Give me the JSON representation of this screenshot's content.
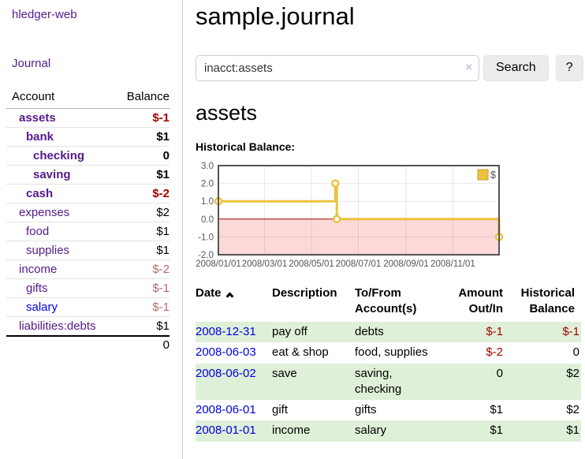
{
  "app": {
    "brand": "hledger-web"
  },
  "sidebar": {
    "nav": [
      {
        "label": "Journal"
      }
    ],
    "accounts": {
      "headers": {
        "account": "Account",
        "balance": "Balance"
      },
      "rows": [
        {
          "name": "assets",
          "depth": 1,
          "bold": true,
          "balance": "$-1",
          "balance_style": "neg-strong"
        },
        {
          "name": "bank",
          "depth": 2,
          "bold": true,
          "balance": "$1",
          "balance_style": "pos"
        },
        {
          "name": "checking",
          "depth": 3,
          "bold": true,
          "balance": "0",
          "balance_style": "pos"
        },
        {
          "name": "saving",
          "depth": 3,
          "bold": true,
          "balance": "$1",
          "balance_style": "pos"
        },
        {
          "name": "cash",
          "depth": 2,
          "bold": true,
          "balance": "$-2",
          "balance_style": "neg-strong"
        },
        {
          "name": "expenses",
          "depth": 1,
          "bold": false,
          "balance": "$2",
          "balance_style": "pos"
        },
        {
          "name": "food",
          "depth": 2,
          "bold": false,
          "balance": "$1",
          "balance_style": "pos"
        },
        {
          "name": "supplies",
          "depth": 2,
          "bold": false,
          "balance": "$1",
          "balance_style": "pos"
        },
        {
          "name": "income",
          "depth": 1,
          "bold": false,
          "balance": "$-2",
          "balance_style": "neg-soft"
        },
        {
          "name": "gifts",
          "depth": 2,
          "bold": false,
          "balance": "$-1",
          "balance_style": "neg-soft"
        },
        {
          "name": "salary",
          "depth": 2,
          "bold": false,
          "link_color": "blue",
          "balance": "$-1",
          "balance_style": "neg-soft"
        },
        {
          "name": "liabilities:debts",
          "depth": 1,
          "bold": false,
          "balance": "$1",
          "balance_style": "pos"
        }
      ],
      "total": "0"
    }
  },
  "header": {
    "title": "sample.journal"
  },
  "search": {
    "query": "inacct:assets",
    "clear": "×",
    "button_label": "Search",
    "help_label": "?"
  },
  "account_page": {
    "heading": "assets",
    "section_label": "Historical Balance:"
  },
  "chart_data": {
    "type": "line",
    "style": "step",
    "series": [
      {
        "name": "$",
        "color": "#edc240",
        "points": [
          [
            "2008/01/01",
            1
          ],
          [
            "2008/06/01",
            2
          ],
          [
            "2008/06/03",
            0
          ],
          [
            "2008/12/31",
            -1
          ]
        ]
      }
    ],
    "x_range": [
      "2008/01/01",
      "2008/12/31"
    ],
    "x_ticks": [
      "2008/01/01",
      "2008/03/01",
      "2008/05/01",
      "2008/07/01",
      "2008/09/01",
      "2008/11/01"
    ],
    "y_range": [
      -2,
      3
    ],
    "y_ticks": [
      3.0,
      2.0,
      1.0,
      0.0,
      -1.0,
      -2.0
    ],
    "grid": true,
    "negative_region_fill": "#fbd9d9",
    "zero_line_color": "#a40000",
    "border_color": "#545454",
    "tick_label_color": "#545454",
    "legend": {
      "label": "$",
      "position": "top-right"
    }
  },
  "journal_table": {
    "columns": [
      {
        "lines": [
          "Date"
        ],
        "sorted": "asc"
      },
      {
        "lines": [
          "Description"
        ]
      },
      {
        "lines": [
          "To/From",
          "Account(s)"
        ]
      },
      {
        "lines": [
          "Amount",
          "Out/In"
        ],
        "align": "right"
      },
      {
        "lines": [
          "Historical",
          "Balance"
        ],
        "align": "right"
      }
    ],
    "rows": [
      {
        "date": "2008-12-31",
        "description": "pay off",
        "accounts": "debts",
        "amount": "$-1",
        "amount_negative": true,
        "balance": "$-1",
        "balance_negative": true,
        "shaded": true
      },
      {
        "date": "2008-06-03",
        "description": "eat & shop",
        "accounts": "food, supplies",
        "amount": "$-2",
        "amount_negative": true,
        "balance": "0",
        "balance_negative": false,
        "shaded": false
      },
      {
        "date": "2008-06-02",
        "description": "save",
        "accounts": "saving, checking",
        "amount": "0",
        "amount_negative": false,
        "balance": "$2",
        "balance_negative": false,
        "shaded": true
      },
      {
        "date": "2008-06-01",
        "description": "gift",
        "accounts": "gifts",
        "amount": "$1",
        "amount_negative": false,
        "balance": "$2",
        "balance_negative": false,
        "shaded": false
      },
      {
        "date": "2008-01-01",
        "description": "income",
        "accounts": "salary",
        "amount": "$1",
        "amount_negative": false,
        "balance": "$1",
        "balance_negative": false,
        "shaded": true
      }
    ]
  },
  "colors": {
    "link_purple": "#551a8b",
    "link_blue": "#0000e0",
    "negative_strong": "#a40000",
    "negative_soft": "#b36a6a",
    "row_highlight_green": "#dff0d8",
    "chart_gold": "#edc240",
    "chart_negative_pink": "#fbd9d9",
    "zero_line_red": "#a40000"
  }
}
